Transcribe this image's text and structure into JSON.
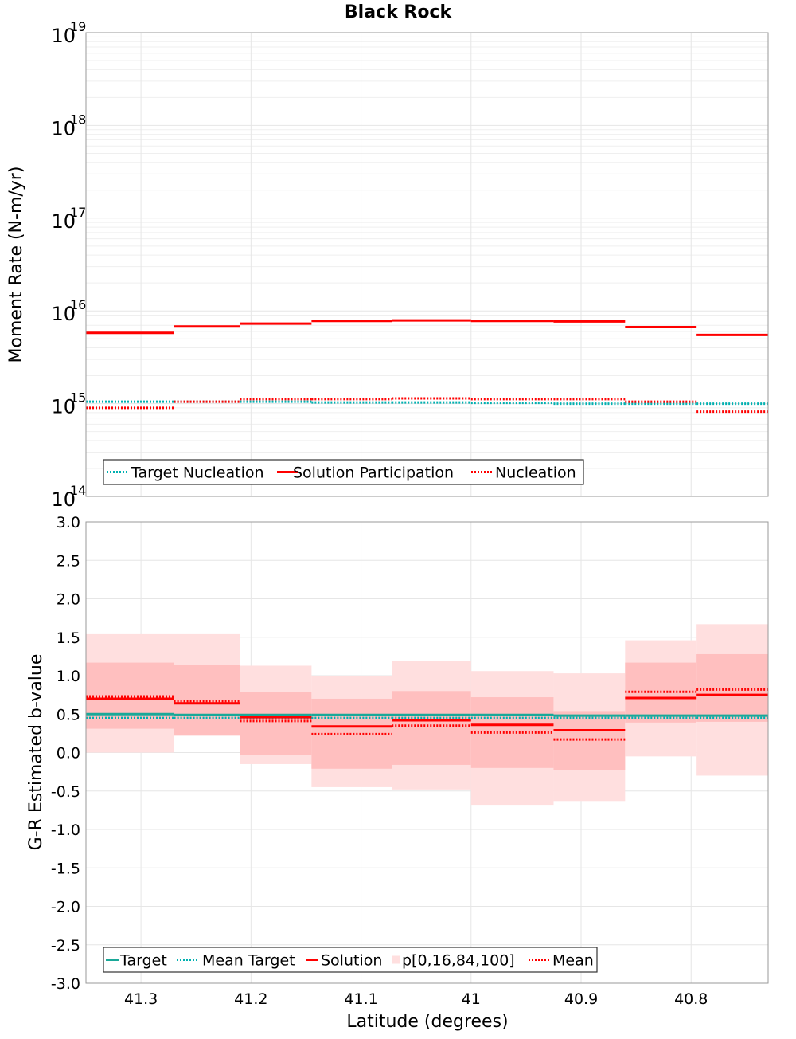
{
  "colors": {
    "participation": "#ff0000",
    "nucleation": "#ff0000",
    "target_nucleation": "#00b0b0",
    "target": "#1aa898",
    "band_outer": "#ffdfdf",
    "band_inner": "#ffbfbf",
    "grid": "#e6e6e6",
    "frame": "#999999"
  },
  "x_axis": {
    "label": "Latitude (degrees)",
    "range": [
      41.35,
      40.73
    ],
    "reversed": true,
    "ticks": [
      "41.3",
      "41.2",
      "41.1",
      "41",
      "40.9",
      "40.8"
    ],
    "tick_values": [
      41.3,
      41.2,
      41.1,
      41.0,
      40.9,
      40.8
    ]
  },
  "chart_data": [
    {
      "type": "line",
      "title": "Black Rock",
      "ylabel": "Moment Rate (N-m/yr)",
      "yscale": "log",
      "ylim": [
        100000000000000.0,
        1e+19
      ],
      "y_ticks": [
        {
          "base": "10",
          "exp": "14"
        },
        {
          "base": "10",
          "exp": "15"
        },
        {
          "base": "10",
          "exp": "16"
        },
        {
          "base": "10",
          "exp": "17"
        },
        {
          "base": "10",
          "exp": "18"
        },
        {
          "base": "10",
          "exp": "19"
        }
      ],
      "bins": [
        [
          41.35,
          41.27
        ],
        [
          41.27,
          41.21
        ],
        [
          41.21,
          41.145
        ],
        [
          41.145,
          41.072
        ],
        [
          41.072,
          41.0
        ],
        [
          41.0,
          40.925
        ],
        [
          40.925,
          40.86
        ],
        [
          40.86,
          40.795
        ],
        [
          40.795,
          40.73
        ]
      ],
      "series": [
        {
          "name": "Target Nucleation",
          "style": "dotted",
          "color_key": "target_nucleation",
          "values": [
            1050000000000000.0,
            1050000000000000.0,
            1050000000000000.0,
            1030000000000000.0,
            1030000000000000.0,
            1020000000000000.0,
            1000000000000000.0,
            1000000000000000.0,
            1000000000000000.0
          ]
        },
        {
          "name": "Solution Participation",
          "style": "solid",
          "color_key": "participation",
          "values": [
            5800000000000000.0,
            6800000000000000.0,
            7300000000000000.0,
            7800000000000000.0,
            7900000000000000.0,
            7800000000000000.0,
            7700000000000000.0,
            6700000000000000.0,
            5500000000000000.0
          ]
        },
        {
          "name": "Nucleation",
          "style": "dotted",
          "color_key": "nucleation",
          "values": [
            900000000000000.0,
            1050000000000000.0,
            1120000000000000.0,
            1120000000000000.0,
            1140000000000000.0,
            1120000000000000.0,
            1120000000000000.0,
            1050000000000000.0,
            820000000000000.0
          ]
        }
      ],
      "legend": {
        "position": "bottom-left",
        "entries": [
          "Target Nucleation",
          "Solution Participation",
          "Nucleation"
        ]
      }
    },
    {
      "type": "line",
      "ylabel": "G-R Estimated b-value",
      "ylim": [
        -3.0,
        3.0
      ],
      "y_ticks": [
        "-3.0",
        "-2.5",
        "-2.0",
        "-1.5",
        "-1.0",
        "-0.5",
        "0.0",
        "0.5",
        "1.0",
        "1.5",
        "2.0",
        "2.5",
        "3.0"
      ],
      "bins": [
        [
          41.35,
          41.27
        ],
        [
          41.27,
          41.21
        ],
        [
          41.21,
          41.145
        ],
        [
          41.145,
          41.072
        ],
        [
          41.072,
          41.0
        ],
        [
          41.0,
          40.925
        ],
        [
          40.925,
          40.86
        ],
        [
          40.86,
          40.795
        ],
        [
          40.795,
          40.73
        ]
      ],
      "series": [
        {
          "name": "Target",
          "style": "solid",
          "color_key": "target",
          "values": [
            0.5,
            0.49,
            0.49,
            0.49,
            0.49,
            0.49,
            0.48,
            0.48,
            0.48
          ]
        },
        {
          "name": "Mean Target",
          "style": "dotted",
          "color_key": "target_nucleation",
          "values": [
            0.45,
            0.45,
            0.45,
            0.45,
            0.45,
            0.45,
            0.45,
            0.45,
            0.45
          ]
        },
        {
          "name": "Solution",
          "style": "solid",
          "color_key": "participation",
          "values": [
            0.7,
            0.64,
            0.46,
            0.34,
            0.42,
            0.36,
            0.29,
            0.71,
            0.75
          ]
        },
        {
          "name": "Mean",
          "style": "dotted",
          "color_key": "nucleation",
          "values": [
            0.73,
            0.67,
            0.41,
            0.24,
            0.35,
            0.26,
            0.17,
            0.79,
            0.82
          ]
        }
      ],
      "percentiles": {
        "name": "p[0,16,84,100]",
        "p0": [
          0.0,
          0.22,
          -0.15,
          -0.45,
          -0.48,
          -0.68,
          -0.63,
          -0.05,
          -0.3
        ],
        "p16": [
          0.31,
          0.22,
          -0.03,
          -0.21,
          -0.16,
          -0.2,
          -0.23,
          0.39,
          0.4
        ],
        "p84": [
          1.17,
          1.14,
          0.79,
          0.7,
          0.8,
          0.72,
          0.54,
          1.17,
          1.28
        ],
        "p100": [
          1.54,
          1.54,
          1.13,
          1.0,
          1.19,
          1.06,
          1.03,
          1.46,
          1.67
        ]
      },
      "legend": {
        "position": "bottom-left",
        "entries": [
          "Target",
          "Mean Target",
          "Solution",
          "p[0,16,84,100]",
          "Mean"
        ]
      }
    }
  ]
}
